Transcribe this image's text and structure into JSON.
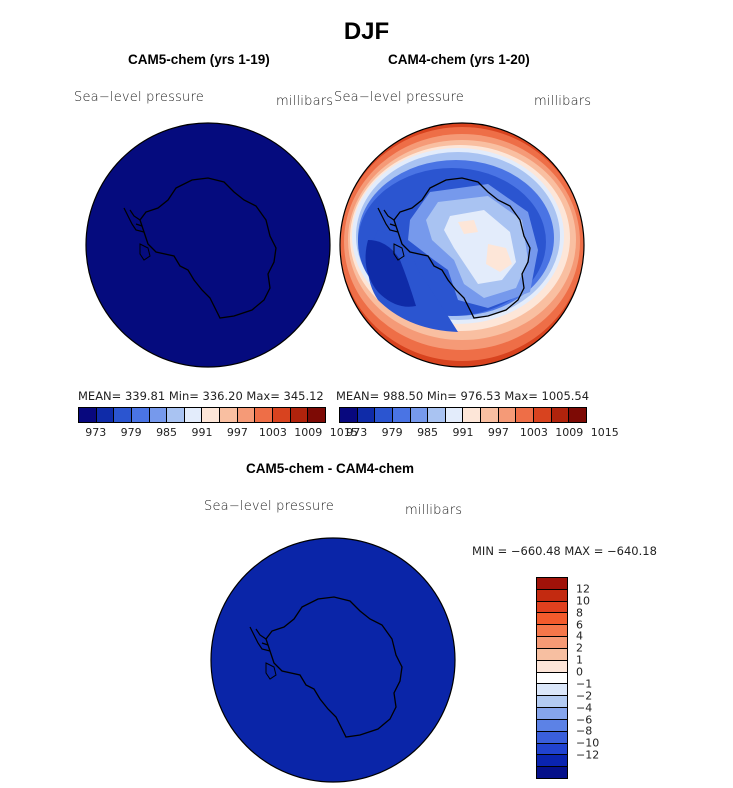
{
  "season": "DJF",
  "panel1": {
    "title": "CAM5-chem (yrs 1-19)",
    "variable": "Sea−level pressure",
    "units": "millibars",
    "stats": "MEAN= 339.81   Min= 336.20   Max= 345.12",
    "fill_color": "#050b7e"
  },
  "panel2": {
    "title": "CAM4-chem (yrs 1-20)",
    "variable": "Sea−level pressure",
    "units": "millibars",
    "stats": "MEAN= 988.50   Min= 976.53   Max= 1005.54"
  },
  "colorbar": {
    "colors": [
      "#08087e",
      "#0f2ba8",
      "#2b55d0",
      "#4a74e4",
      "#7699ec",
      "#a9c3f2",
      "#e3ecfb",
      "#fde6d8",
      "#f9bfa1",
      "#f59a77",
      "#ee6e47",
      "#d8431f",
      "#b0230c",
      "#7d0a05"
    ],
    "ticks": [
      "973",
      "979",
      "985",
      "991",
      "997",
      "1003",
      "1009",
      "1015"
    ]
  },
  "panel3": {
    "title": "CAM5-chem - CAM4-chem",
    "variable": "Sea−level pressure",
    "units": "millibars",
    "stats": "MIN = −660.48 MAX = −640.18",
    "fill_color": "#0a25a8"
  },
  "diff_colorbar": {
    "colors": [
      "#a01209",
      "#c32a10",
      "#e0401e",
      "#f35b2c",
      "#f5774a",
      "#f69a75",
      "#f7bfa1",
      "#fde5d8",
      "#ffffff",
      "#dbe7fa",
      "#b3cbf2",
      "#86a5ec",
      "#5c82e6",
      "#3a5fdc",
      "#2143d0",
      "#0a24b0",
      "#05108a"
    ],
    "ticks": [
      "12",
      "10",
      "8",
      "6",
      "4",
      "2",
      "1",
      "0",
      "−1",
      "−2",
      "−4",
      "−6",
      "−8",
      "−10",
      "−12"
    ]
  }
}
